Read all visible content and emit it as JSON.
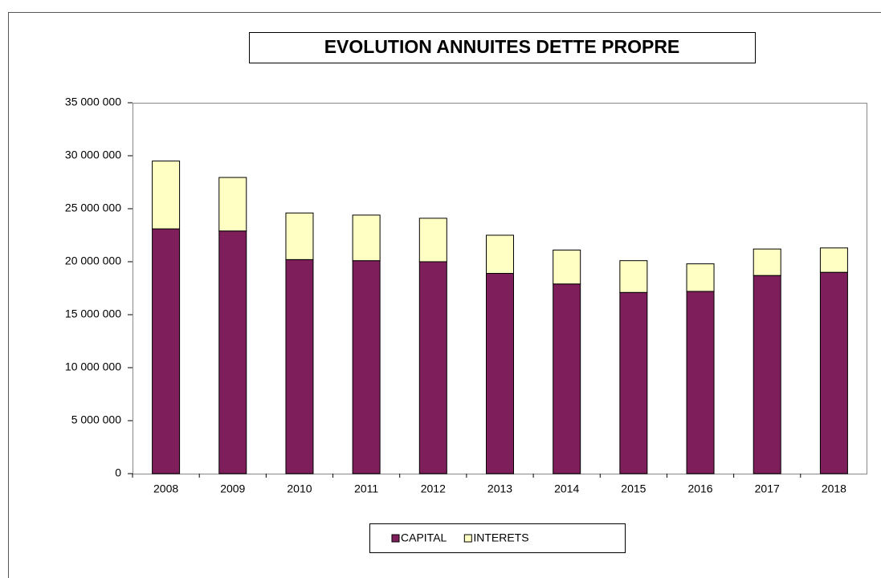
{
  "chart_data": {
    "type": "stacked_bar",
    "title": "EVOLUTION ANNUITES DETTE PROPRE",
    "categories": [
      "2008",
      "2009",
      "2010",
      "2011",
      "2012",
      "2013",
      "2014",
      "2015",
      "2016",
      "2017",
      "2018"
    ],
    "series": [
      {
        "name": "CAPITAL",
        "color": "#7e1f5c",
        "values": [
          23100000,
          22900000,
          20200000,
          20100000,
          20000000,
          18900000,
          17900000,
          17100000,
          17200000,
          18700000,
          19000000
        ]
      },
      {
        "name": "INTERETS",
        "color": "#ffffc4",
        "values": [
          6400000,
          5050000,
          4400000,
          4300000,
          4100000,
          3600000,
          3200000,
          3000000,
          2600000,
          2500000,
          2300000
        ]
      }
    ],
    "ylim": [
      0,
      35000000
    ],
    "yticks": [
      0,
      {
        "value": 5000000,
        "label": "5 000 000"
      },
      {
        "value": 10000000,
        "label": "10 000 000"
      },
      {
        "value": 15000000,
        "label": "15 000 000"
      },
      {
        "value": 20000000,
        "label": "20 000 000"
      },
      {
        "value": 25000000,
        "label": "25 000 000"
      },
      {
        "value": 30000000,
        "label": "30 000 000"
      },
      {
        "value": 35000000,
        "label": "35 000 000"
      }
    ],
    "legend": "bottom"
  }
}
